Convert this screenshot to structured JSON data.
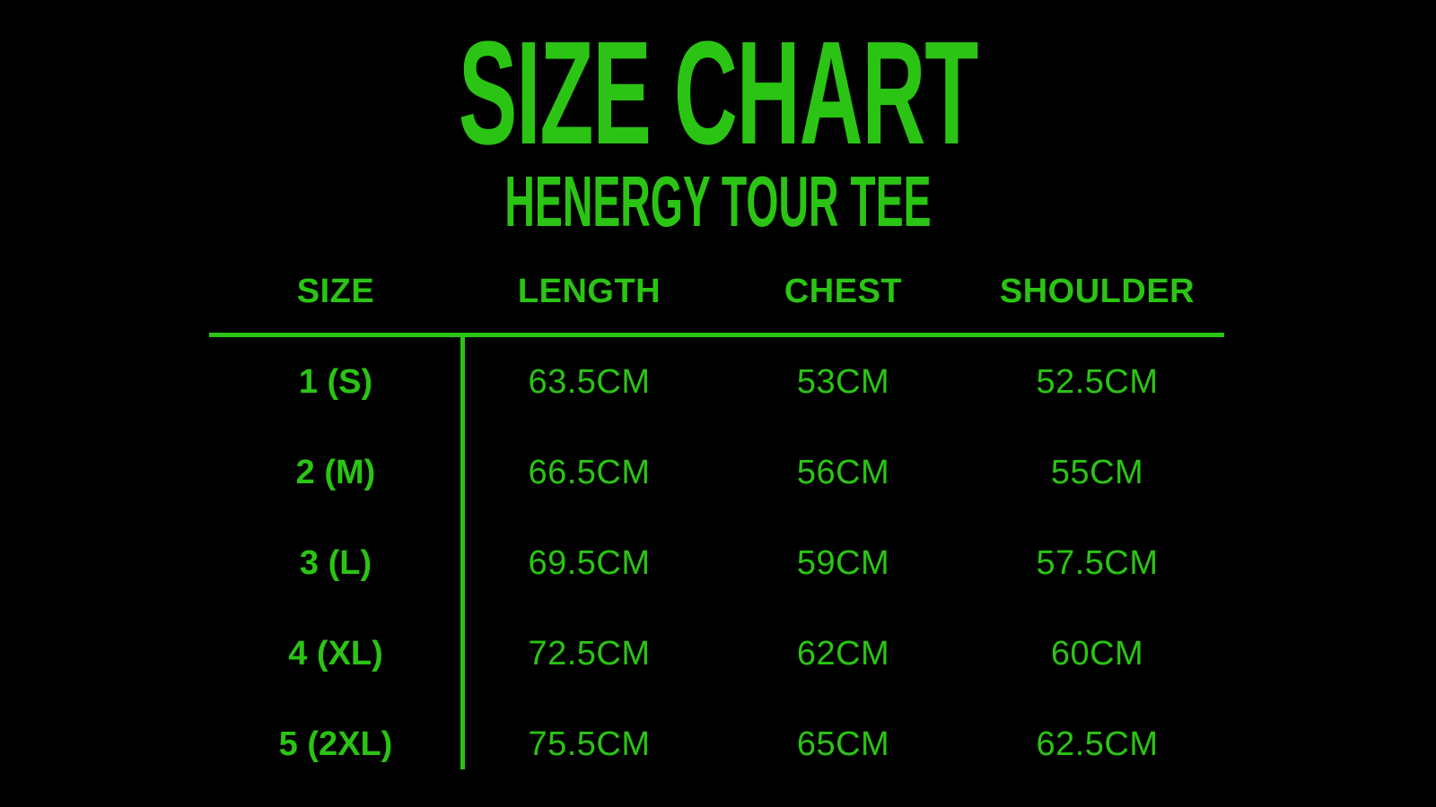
{
  "accent_color": "#2bc414",
  "background_color": "#000000",
  "title": "SIZE CHART",
  "subtitle": "HENERGY TOUR TEE",
  "chart_data": {
    "type": "table",
    "title": "SIZE CHART",
    "subtitle": "HENERGY TOUR TEE",
    "columns": [
      "SIZE",
      "LENGTH",
      "CHEST",
      "SHOULDER"
    ],
    "rows": [
      [
        "1 (S)",
        "63.5CM",
        "53CM",
        "52.5CM"
      ],
      [
        "2 (M)",
        "66.5CM",
        "56CM",
        "55CM"
      ],
      [
        "3 (L)",
        "69.5CM",
        "59CM",
        "57.5CM"
      ],
      [
        "4 (XL)",
        "72.5CM",
        "62CM",
        "60CM"
      ],
      [
        "5 (2XL)",
        "75.5CM",
        "65CM",
        "62.5CM"
      ]
    ],
    "unit": "CM",
    "layout": {
      "text_color": "#2bc414",
      "background": "#000000",
      "header_rule": true,
      "first_column_divider": true
    }
  }
}
